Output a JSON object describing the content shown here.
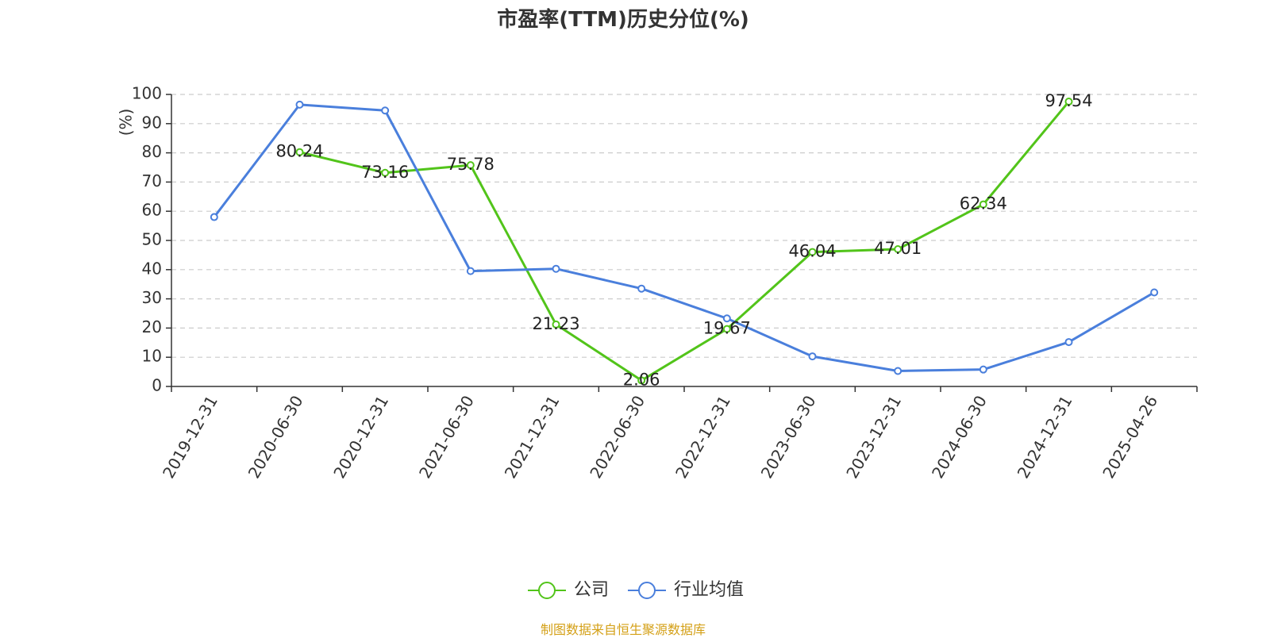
{
  "chart_data": {
    "type": "line",
    "title": "市盈率(TTM)历史分位(%)",
    "ylabel": "(%)",
    "xlabel": "",
    "ylim": [
      0,
      100
    ],
    "yticks": [
      0,
      10,
      20,
      30,
      40,
      50,
      60,
      70,
      80,
      90,
      100
    ],
    "grid": true,
    "legend_position": "bottom",
    "categories": [
      "2019-12-31",
      "2020-06-30",
      "2020-12-31",
      "2021-06-30",
      "2021-12-31",
      "2022-06-30",
      "2022-12-31",
      "2023-06-30",
      "2023-12-31",
      "2024-06-30",
      "2024-12-31",
      "2025-04-26"
    ],
    "series": [
      {
        "name": "公司",
        "color": "#52c41a",
        "show_labels": true,
        "values": [
          null,
          80.24,
          73.16,
          75.78,
          21.23,
          2.06,
          19.67,
          46.04,
          47.01,
          62.34,
          97.54,
          null
        ]
      },
      {
        "name": "行业均值",
        "color": "#4a7fdc",
        "show_labels": false,
        "values": [
          58.0,
          96.5,
          94.5,
          39.5,
          40.3,
          33.5,
          23.3,
          10.3,
          5.3,
          5.8,
          15.2,
          32.2
        ]
      }
    ]
  },
  "footer": {
    "source": "制图数据来自恒生聚源数据库",
    "color": "#d4a017"
  },
  "colors": {
    "axis": "#333333",
    "grid": "#cccccc",
    "ylabel": "#ff0000"
  }
}
